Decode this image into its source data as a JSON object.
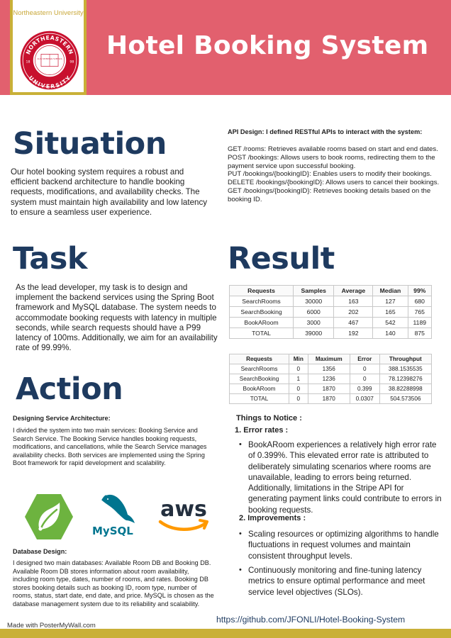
{
  "header": {
    "university_name": "Northeastern University",
    "seal_text_top": "NORTHEASTERN",
    "seal_text_bottom": "UNIVERSITY",
    "seal_year_left": "18",
    "seal_year_right": "98",
    "seal_motto": "LUX VERITAS VIRTUS",
    "title": "Hotel Booking System"
  },
  "colors": {
    "header_bg": "#e2606e",
    "accent_gold": "#c9b037",
    "heading_navy": "#1e3a5f",
    "seal_red": "#c8102e"
  },
  "situation": {
    "heading": "Situation",
    "text": "Our hotel booking system requires a robust and efficient backend architecture to handle booking requests, modifications, and availability checks. The system must maintain high availability and low latency to ensure a seamless user experience."
  },
  "api": {
    "title": "API Design: I defined RESTful APIs to interact with the system:",
    "items": [
      "GET /rooms: Retrieves available rooms based on start and end dates.",
      "POST /bookings: Allows users to book rooms, redirecting them to the payment service upon successful booking.",
      "PUT /bookings/{bookingID}: Enables users to modify their bookings.",
      "DELETE /bookings/{bookingID}: Allows users to cancel their bookings.",
      "GET /bookings/{bookingID}: Retrieves booking details based on the booking ID."
    ]
  },
  "task": {
    "heading": "Task",
    "text": "As the lead developer, my task is to design and implement the backend services using the Spring Boot framework and MySQL database. The system needs to accommodate booking requests with latency in multiple seconds, while search requests should have a P99 latency of 100ms. Additionally, we aim for an availability rate of 99.99%."
  },
  "result": {
    "heading": "Result",
    "table1": {
      "headers": [
        "Requests",
        "Samples",
        "Average",
        "Median",
        "99%"
      ],
      "rows": [
        [
          "SearchRooms",
          "30000",
          "163",
          "127",
          "680"
        ],
        [
          "SearchBooking",
          "6000",
          "202",
          "165",
          "765"
        ],
        [
          "BookARoom",
          "3000",
          "467",
          "542",
          "1189"
        ],
        [
          "TOTAL",
          "39000",
          "192",
          "140",
          "875"
        ]
      ]
    },
    "table2": {
      "headers": [
        "Requests",
        "Min",
        "Maximum",
        "Error",
        "Throughput"
      ],
      "rows": [
        [
          "SearchRooms",
          "0",
          "1356",
          "0",
          "388.1535535"
        ],
        [
          "SearchBooking",
          "1",
          "1236",
          "0",
          "78.12398276"
        ],
        [
          "BookARoom",
          "0",
          "1870",
          "0.399",
          "38.82288998"
        ],
        [
          "TOTAL",
          "0",
          "1870",
          "0.0307",
          "504.573506"
        ]
      ]
    },
    "notice": {
      "title": "Things to Notice :",
      "section1_heading": "1. Error rates :",
      "section1_bullets": [
        "BookARoom experiences a relatively high error rate of 0.399%. This elevated error rate is attributed to deliberately simulating scenarios where rooms are unavailable, leading to errors being returned. Additionally, limitations in the Stripe API for generating payment links could contribute to errors in booking requests."
      ],
      "section2_heading": "2. Improvements :",
      "section2_bullets": [
        "Scaling resources or optimizing algorithms to handle fluctuations in request volumes and maintain consistent throughput levels.",
        "Continuously monitoring and fine-tuning latency metrics to ensure optimal performance and meet service level objectives (SLOs)."
      ]
    }
  },
  "action": {
    "heading": "Action",
    "arch_title": "Designing Service Architecture:",
    "arch_text": "I divided the system into two main services: Booking Service and Search Service. The Booking Service handles booking requests, modifications, and cancellations, while the Search Service manages availability checks. Both services are implemented using the Spring Boot framework for rapid development and scalability.",
    "logos": {
      "spring_icon": "spring-leaf-icon",
      "mysql_label": "MySQL",
      "mysql_icon": "dolphin-icon",
      "aws_label": "aws",
      "aws_icon": "aws-smile-icon"
    },
    "db_title": "Database Design:",
    "db_text": "I designed two main databases: Available Room DB and Booking DB. Available Room DB stores information about room availability, including room type, dates, number of rooms, and rates. Booking DB stores booking details such as booking ID, room type, number of rooms, status, start date, end date, and price. MySQL is chosen as the database management system due to its reliability and scalability."
  },
  "footer": {
    "made_with": "Made with PosterMyWall.com",
    "github_url": "https://github.com/JFONLI/Hotel-Booking-System"
  }
}
